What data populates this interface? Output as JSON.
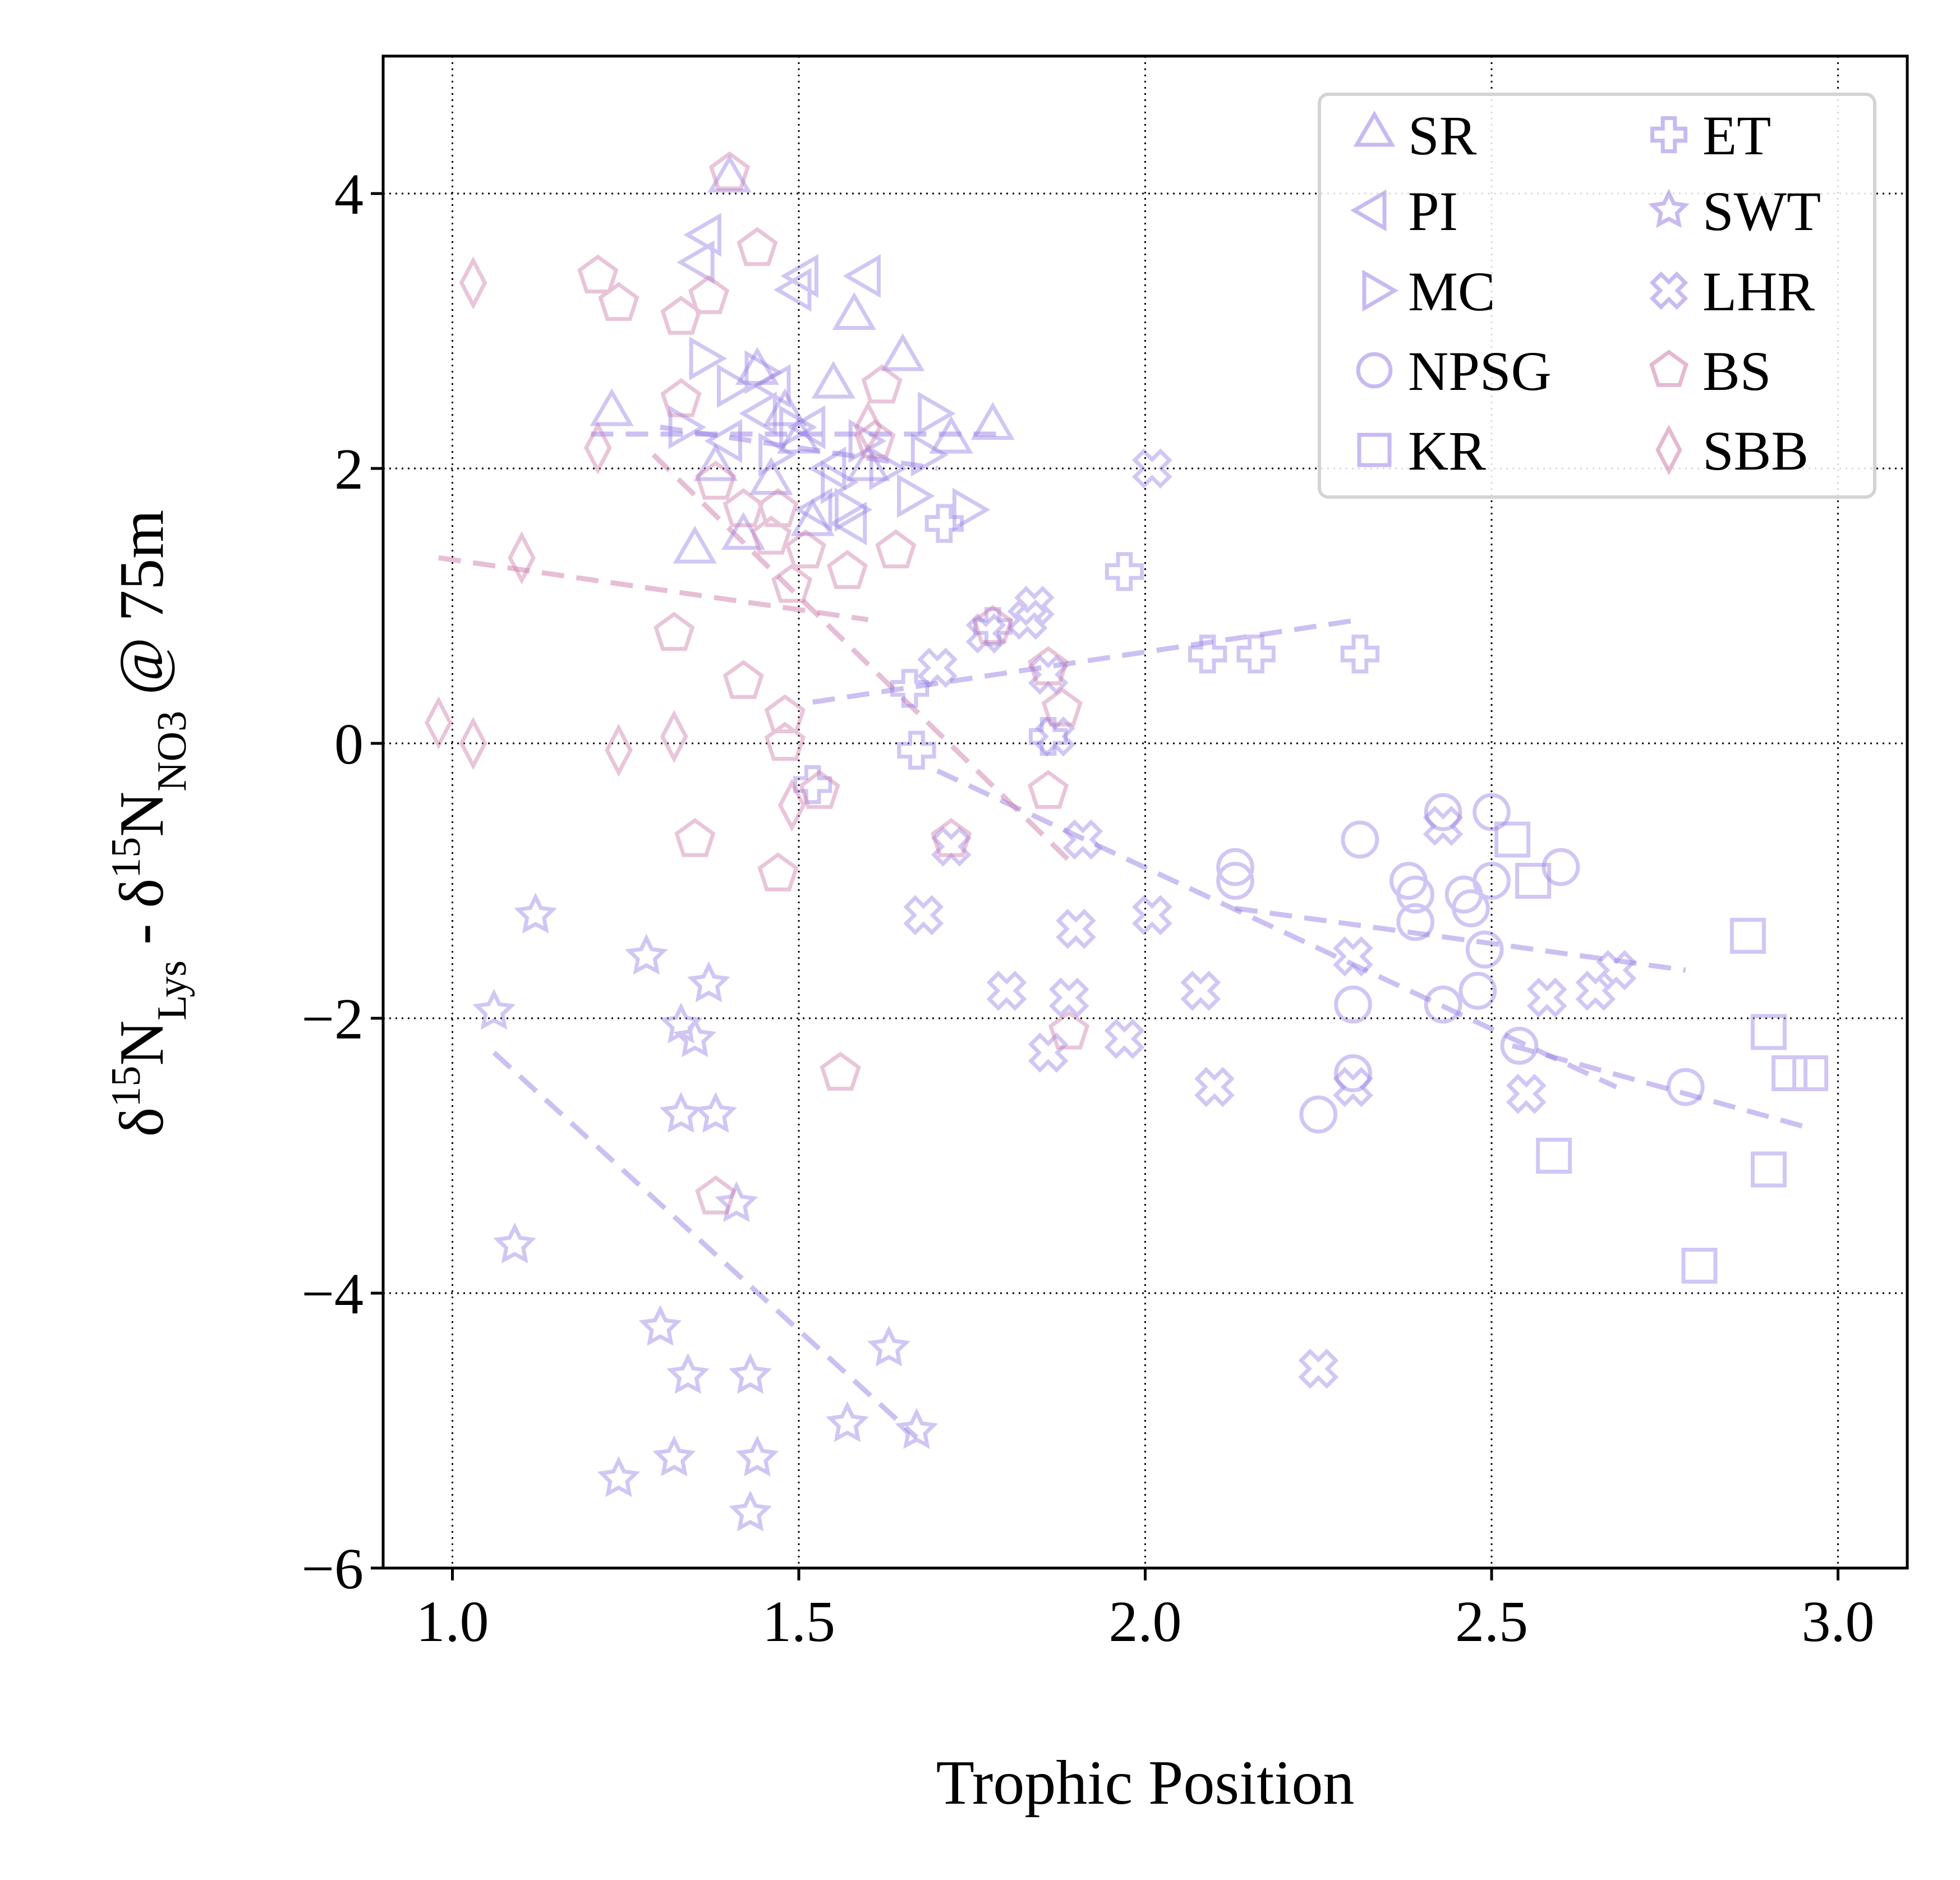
{
  "chart_data": {
    "type": "scatter",
    "title": "",
    "xlabel": "Trophic Position",
    "ylabel": {
      "main": "δ",
      "sup1": "15",
      "base1": "N",
      "sub1": "Lys",
      "mid": " - δ",
      "sup2": "15",
      "base2": "N",
      "sub2": "NO3",
      "tail": " @ 75m"
    },
    "xlim": [
      0.9,
      3.1
    ],
    "ylim": [
      -6,
      5
    ],
    "xticks": [
      "1.0",
      "1.5",
      "2.0",
      "2.5",
      "3.0"
    ],
    "xtick_values": [
      1.0,
      1.5,
      2.0,
      2.5,
      3.0
    ],
    "yticks": [
      "4",
      "2",
      "0",
      "−2",
      "−4",
      "−6"
    ],
    "ytick_values": [
      4,
      2,
      0,
      -2,
      -4,
      -6
    ],
    "grid": true,
    "legend_position": "top-right",
    "colors": {
      "purple": "#9a82e6",
      "pink": "#cf7fac"
    },
    "series": [
      {
        "name": "SR",
        "marker": "triangle-up",
        "color": "#9a82e6",
        "points": [
          [
            1.4,
            4.1
          ],
          [
            1.23,
            2.4
          ],
          [
            1.35,
            1.4
          ],
          [
            1.44,
            2.7
          ],
          [
            1.5,
            2.2
          ],
          [
            1.55,
            2.6
          ],
          [
            1.58,
            3.1
          ],
          [
            1.65,
            2.8
          ],
          [
            1.72,
            2.2
          ],
          [
            1.78,
            2.3
          ],
          [
            1.46,
            1.9
          ],
          [
            1.52,
            1.6
          ],
          [
            1.6,
            2.0
          ],
          [
            1.38,
            2.0
          ],
          [
            1.42,
            1.5
          ],
          [
            1.48,
            2.4
          ]
        ],
        "trend": [
          [
            1.2,
            2.25
          ],
          [
            1.8,
            2.25
          ]
        ]
      },
      {
        "name": "PI",
        "marker": "triangle-left",
        "color": "#9a82e6",
        "points": [
          [
            1.37,
            3.7
          ],
          [
            1.36,
            3.5
          ],
          [
            1.5,
            3.3
          ],
          [
            1.51,
            3.4
          ],
          [
            1.6,
            3.4
          ],
          [
            1.45,
            2.4
          ],
          [
            1.55,
            2.0
          ],
          [
            1.4,
            2.2
          ],
          [
            1.52,
            2.3
          ],
          [
            1.58,
            1.6
          ],
          [
            1.47,
            2.6
          ],
          [
            1.53,
            1.7
          ]
        ],
        "trend": [
          [
            1.3,
            2.3
          ],
          [
            1.7,
            2.0
          ]
        ]
      },
      {
        "name": "MC",
        "marker": "triangle-right",
        "color": "#9a82e6",
        "points": [
          [
            1.36,
            2.8
          ],
          [
            1.33,
            2.3
          ],
          [
            1.4,
            2.6
          ],
          [
            1.44,
            2.7
          ],
          [
            1.46,
            2.1
          ],
          [
            1.49,
            2.3
          ],
          [
            1.55,
            1.9
          ],
          [
            1.57,
            1.7
          ],
          [
            1.59,
            2.2
          ],
          [
            1.62,
            2.0
          ],
          [
            1.66,
            1.8
          ],
          [
            1.69,
            2.4
          ],
          [
            1.74,
            1.7
          ],
          [
            1.68,
            2.1
          ]
        ]
      },
      {
        "name": "NPSG",
        "marker": "circle",
        "color": "#9a82e6",
        "points": [
          [
            2.13,
            -1.0
          ],
          [
            2.13,
            -0.9
          ],
          [
            2.25,
            -2.7
          ],
          [
            2.3,
            -2.4
          ],
          [
            2.3,
            -1.9
          ],
          [
            2.31,
            -0.7
          ],
          [
            2.38,
            -1.0
          ],
          [
            2.39,
            -1.1
          ],
          [
            2.39,
            -1.3
          ],
          [
            2.43,
            -0.5
          ],
          [
            2.43,
            -1.9
          ],
          [
            2.46,
            -1.1
          ],
          [
            2.47,
            -1.2
          ],
          [
            2.48,
            -1.8
          ],
          [
            2.49,
            -1.5
          ],
          [
            2.5,
            -0.5
          ],
          [
            2.5,
            -1.0
          ],
          [
            2.54,
            -2.2
          ],
          [
            2.6,
            -0.9
          ],
          [
            2.78,
            -2.5
          ]
        ],
        "trend": [
          [
            2.13,
            -1.2
          ],
          [
            2.78,
            -1.65
          ]
        ]
      },
      {
        "name": "KR",
        "marker": "square",
        "color": "#9a82e6",
        "points": [
          [
            2.53,
            -0.7
          ],
          [
            2.56,
            -1.0
          ],
          [
            2.59,
            -3.0
          ],
          [
            2.8,
            -3.8
          ],
          [
            2.87,
            -1.4
          ],
          [
            2.9,
            -2.1
          ],
          [
            2.9,
            -3.1
          ],
          [
            2.93,
            -2.4
          ],
          [
            2.96,
            -2.4
          ]
        ],
        "trend": [
          [
            2.53,
            -2.2
          ],
          [
            2.96,
            -2.8
          ]
        ]
      },
      {
        "name": "ET",
        "marker": "plus",
        "color": "#9a82e6",
        "points": [
          [
            1.52,
            -0.3
          ],
          [
            1.66,
            0.4
          ],
          [
            1.67,
            -0.05
          ],
          [
            1.71,
            1.6
          ],
          [
            1.78,
            0.85
          ],
          [
            1.86,
            0.05
          ],
          [
            1.97,
            1.25
          ],
          [
            2.09,
            0.65
          ],
          [
            2.16,
            0.65
          ],
          [
            2.31,
            0.65
          ]
        ],
        "trend": [
          [
            1.52,
            0.3
          ],
          [
            2.31,
            0.9
          ]
        ]
      },
      {
        "name": "SWT",
        "marker": "star",
        "color": "#9a82e6",
        "points": [
          [
            1.06,
            -1.95
          ],
          [
            1.09,
            -3.65
          ],
          [
            1.12,
            -1.25
          ],
          [
            1.24,
            -5.35
          ],
          [
            1.28,
            -1.55
          ],
          [
            1.3,
            -4.25
          ],
          [
            1.32,
            -5.2
          ],
          [
            1.33,
            -2.05
          ],
          [
            1.33,
            -2.7
          ],
          [
            1.34,
            -4.6
          ],
          [
            1.35,
            -2.15
          ],
          [
            1.37,
            -1.75
          ],
          [
            1.38,
            -2.7
          ],
          [
            1.41,
            -3.35
          ],
          [
            1.43,
            -4.6
          ],
          [
            1.43,
            -5.6
          ],
          [
            1.44,
            -5.2
          ],
          [
            1.57,
            -4.95
          ],
          [
            1.63,
            -4.4
          ],
          [
            1.67,
            -5.0
          ]
        ],
        "trend": [
          [
            1.06,
            -2.25
          ],
          [
            1.67,
            -5.05
          ]
        ]
      },
      {
        "name": "LHR",
        "marker": "x-cross",
        "color": "#9a82e6",
        "points": [
          [
            1.68,
            -1.25
          ],
          [
            1.7,
            0.55
          ],
          [
            1.72,
            -0.75
          ],
          [
            1.77,
            0.8
          ],
          [
            1.8,
            -1.8
          ],
          [
            1.83,
            0.9
          ],
          [
            1.84,
            1.0
          ],
          [
            1.86,
            -2.25
          ],
          [
            1.86,
            0.5
          ],
          [
            1.87,
            0.05
          ],
          [
            1.89,
            -1.85
          ],
          [
            1.9,
            -1.35
          ],
          [
            1.91,
            -0.7
          ],
          [
            1.97,
            -2.15
          ],
          [
            2.01,
            2.0
          ],
          [
            2.01,
            -1.25
          ],
          [
            2.08,
            -1.8
          ],
          [
            2.1,
            -2.5
          ],
          [
            2.25,
            -4.55
          ],
          [
            2.3,
            -1.55
          ],
          [
            2.3,
            -2.5
          ],
          [
            2.43,
            -0.6
          ],
          [
            2.55,
            -2.55
          ],
          [
            2.58,
            -1.85
          ],
          [
            2.65,
            -1.8
          ],
          [
            2.68,
            -1.65
          ]
        ],
        "trend": [
          [
            1.7,
            -0.2
          ],
          [
            2.68,
            -2.5
          ]
        ]
      },
      {
        "name": "BS",
        "marker": "pentagon",
        "color": "#cf7fac",
        "points": [
          [
            1.4,
            4.15
          ],
          [
            1.44,
            3.6
          ],
          [
            1.21,
            3.4
          ],
          [
            1.24,
            3.2
          ],
          [
            1.33,
            3.1
          ],
          [
            1.37,
            3.25
          ],
          [
            1.62,
            2.6
          ],
          [
            1.33,
            2.5
          ],
          [
            1.38,
            1.9
          ],
          [
            1.42,
            1.7
          ],
          [
            1.46,
            1.5
          ],
          [
            1.61,
            2.2
          ],
          [
            1.64,
            1.4
          ],
          [
            1.51,
            1.4
          ],
          [
            1.47,
            1.7
          ],
          [
            1.57,
            1.25
          ],
          [
            1.49,
            1.15
          ],
          [
            1.32,
            0.8
          ],
          [
            1.42,
            0.45
          ],
          [
            1.48,
            0.2
          ],
          [
            1.48,
            0.0
          ],
          [
            1.53,
            -0.35
          ],
          [
            1.35,
            -0.7
          ],
          [
            1.47,
            -0.95
          ],
          [
            1.56,
            -2.4
          ],
          [
            1.38,
            -3.3
          ],
          [
            1.72,
            -0.7
          ],
          [
            1.78,
            0.85
          ],
          [
            1.86,
            0.55
          ],
          [
            1.88,
            0.25
          ],
          [
            1.86,
            -0.35
          ],
          [
            1.89,
            -2.1
          ]
        ],
        "trend": [
          [
            1.29,
            2.1
          ],
          [
            1.9,
            -0.9
          ]
        ]
      },
      {
        "name": "SBB",
        "marker": "diamond",
        "color": "#cf7fac",
        "points": [
          [
            1.03,
            3.35
          ],
          [
            1.21,
            2.15
          ],
          [
            1.1,
            1.35
          ],
          [
            0.98,
            0.15
          ],
          [
            1.03,
            0.0
          ],
          [
            1.24,
            -0.05
          ],
          [
            1.32,
            0.05
          ],
          [
            1.49,
            -0.45
          ],
          [
            1.6,
            2.3
          ]
        ],
        "trend": [
          [
            0.98,
            1.35
          ],
          [
            1.6,
            0.9
          ]
        ]
      }
    ]
  }
}
